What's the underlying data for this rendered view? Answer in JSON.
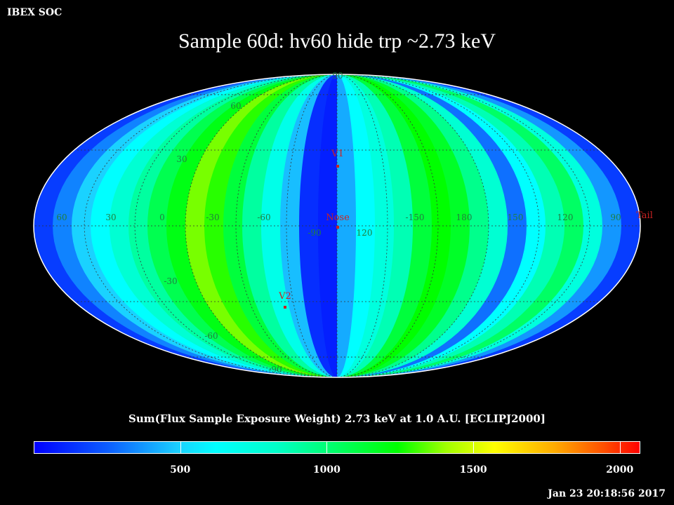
{
  "header": {
    "org": "IBEX SOC",
    "title": "Sample 60d: hv60 hide trp ~2.73 keV",
    "timestamp": "Jan 23 20:18:56 2017"
  },
  "map": {
    "projection": "Mollweide",
    "lat_labels": [
      {
        "text": "90",
        "lat": 90,
        "side": "top"
      },
      {
        "text": "60",
        "lat": 60,
        "side": "left"
      },
      {
        "text": "30",
        "lat": 30,
        "side": "left"
      },
      {
        "text": "-30",
        "lat": -30,
        "side": "left"
      },
      {
        "text": "-60",
        "lat": -60,
        "side": "left"
      },
      {
        "text": "-90",
        "lat": -90,
        "side": "bottom"
      }
    ],
    "lon_labels": [
      "60",
      "30",
      "0",
      "-30",
      "-60",
      "-90",
      "120",
      "-150",
      "180",
      "150",
      "120",
      "90"
    ],
    "markers": [
      {
        "name": "V1",
        "label": "V1",
        "lon": 0,
        "lat": 37
      },
      {
        "name": "Nose",
        "label": "Nose",
        "lon": 0,
        "lat": -5
      },
      {
        "name": "V2",
        "label": "V2",
        "lon": -31,
        "lat": -31
      },
      {
        "name": "Tail",
        "label": "Tail",
        "lon": 180,
        "lat": 5
      }
    ],
    "marker_color": "#cc2222",
    "label_color": "#1f7f3f"
  },
  "colorbar": {
    "label": "Sum(Flux Sample Exposure Weight)  2.73 keV at 1.0 A.U. [ECLIPJ2000]",
    "min": 0,
    "max": 2070,
    "ticks": [
      {
        "value": 500,
        "label": "500"
      },
      {
        "value": 1000,
        "label": "1000"
      },
      {
        "value": 1500,
        "label": "1500"
      },
      {
        "value": 2000,
        "label": "2000"
      }
    ]
  }
}
